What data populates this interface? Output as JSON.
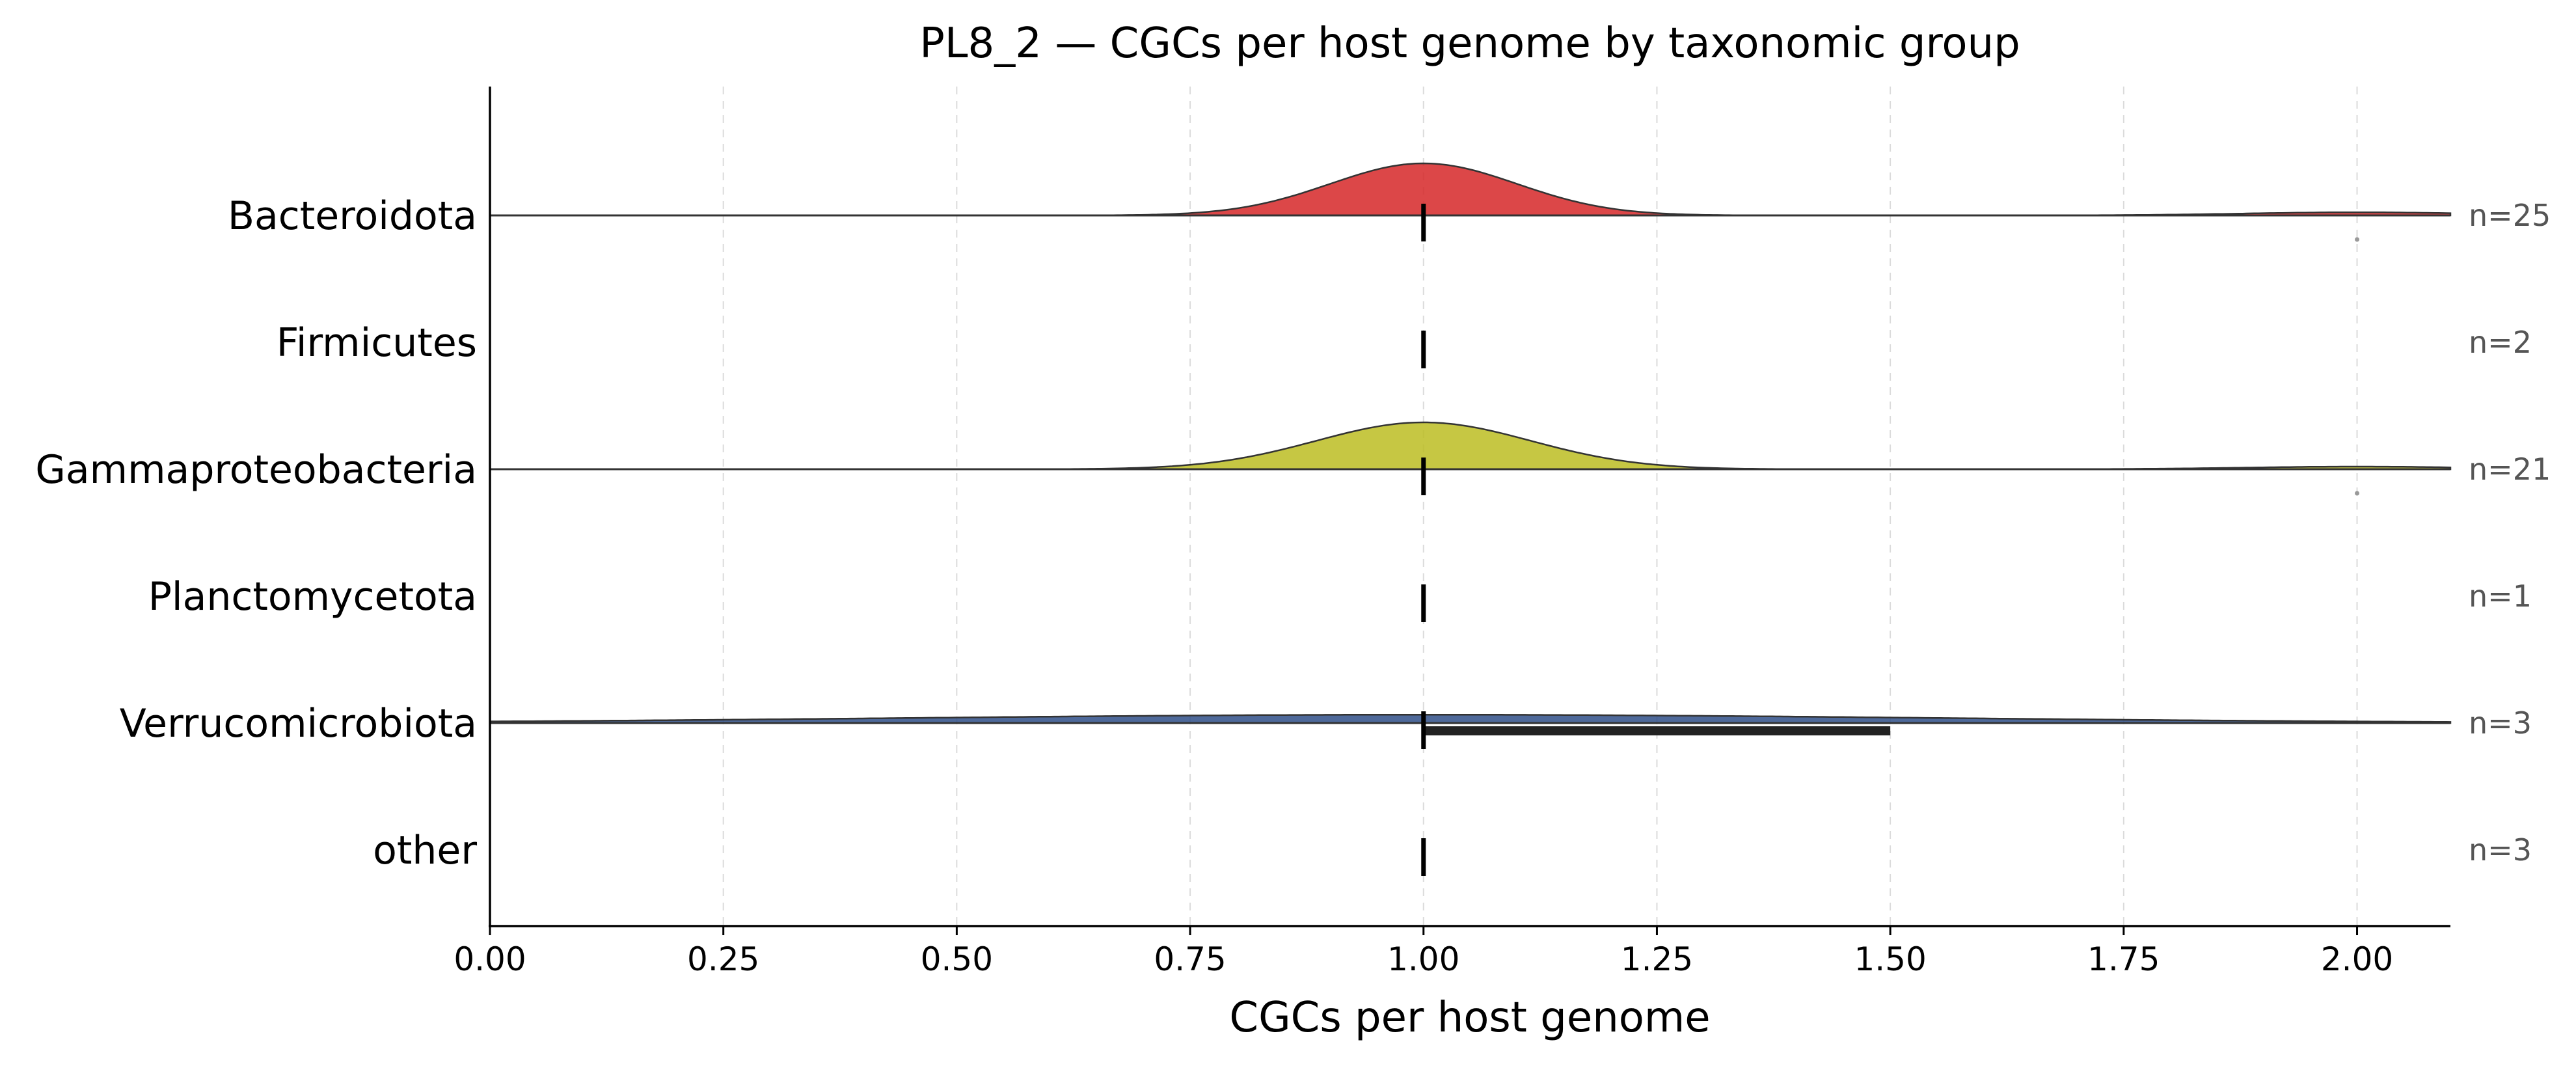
{
  "chart_data": {
    "type": "ridgeline",
    "title": "PL8_2 — CGCs per host genome by taxonomic group",
    "xlabel": "CGCs per host genome",
    "ylabel": "",
    "xlim": [
      0.0,
      2.1
    ],
    "xticks": [
      0.0,
      0.25,
      0.5,
      0.75,
      1.0,
      1.25,
      1.5,
      1.75,
      2.0
    ],
    "xtick_labels": [
      "0.00",
      "0.25",
      "0.50",
      "0.75",
      "1.00",
      "1.25",
      "1.50",
      "1.75",
      "2.00"
    ],
    "grid": "x, dashed",
    "groups": [
      {
        "name": "Bacteroidota",
        "n_label": "n=25",
        "color": "#d62728",
        "has_density": true,
        "density_main": {
          "center": 1.0,
          "sd": 0.1,
          "peak": 1.0
        },
        "density_tail": {
          "center": 2.0,
          "sd": 0.12,
          "peak": 0.06
        },
        "median": 1.0,
        "iqr": [
          1.0,
          1.0
        ],
        "outliers": [
          2.0
        ]
      },
      {
        "name": "Firmicutes",
        "n_label": "n=2",
        "color": "#ff7f0e",
        "has_density": false,
        "median": 1.0,
        "iqr": [
          1.0,
          1.0
        ],
        "outliers": []
      },
      {
        "name": "Gammaproteobacteria",
        "n_label": "n=21",
        "color": "#bcbd22",
        "has_density": true,
        "density_main": {
          "center": 1.0,
          "sd": 0.115,
          "peak": 0.9
        },
        "density_tail": {
          "center": 2.0,
          "sd": 0.12,
          "peak": 0.05
        },
        "median": 1.0,
        "iqr": [
          1.0,
          1.0
        ],
        "outliers": [
          2.0
        ]
      },
      {
        "name": "Planctomycetota",
        "n_label": "n=1",
        "color": "#2ca02c",
        "has_density": false,
        "median": 1.0,
        "iqr": [
          1.0,
          1.0
        ],
        "outliers": []
      },
      {
        "name": "Verrucomicrobiota",
        "n_label": "n=3",
        "color": "#2f4f88",
        "has_density": true,
        "density_main": {
          "center": 1.0,
          "sd": 0.55,
          "peak": 0.16
        },
        "density_tail": {
          "center": 2.0,
          "sd": 0.12,
          "peak": 0.0
        },
        "median": 1.0,
        "iqr": [
          1.0,
          1.5
        ],
        "outliers": []
      },
      {
        "name": "other",
        "n_label": "n=3",
        "color": "#7f7f7f",
        "has_density": false,
        "median": 1.0,
        "iqr": [
          1.0,
          1.0
        ],
        "outliers": []
      }
    ]
  }
}
